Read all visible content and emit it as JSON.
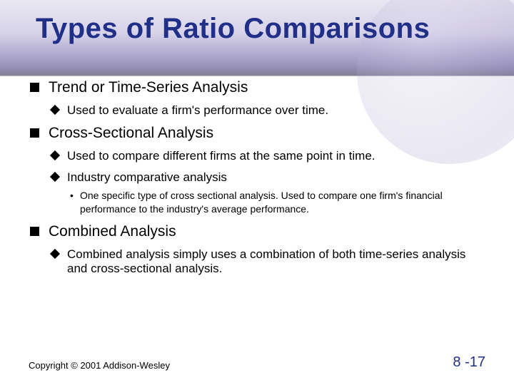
{
  "colors": {
    "title": "#203088",
    "text": "#000000",
    "pagenum": "#203088",
    "background": "#ffffff",
    "band_top": "#d8d4e8",
    "band_mid": "#7a6fb0",
    "band_dark": "#1a1438"
  },
  "typography": {
    "title_fontsize": 40,
    "lvl1_fontsize": 21,
    "lvl2_fontsize": 17,
    "lvl3_fontsize": 14,
    "footer_fontsize": 13,
    "pagenum_fontsize": 20,
    "family": "Arial"
  },
  "title": "Types of Ratio Comparisons",
  "bullets": [
    {
      "text": "Trend or Time-Series Analysis",
      "children": [
        {
          "text": "Used to evaluate a firm's performance over time."
        }
      ]
    },
    {
      "text": "Cross-Sectional Analysis",
      "children": [
        {
          "text": "Used to compare different firms at the same point in time."
        },
        {
          "text": "Industry comparative analysis",
          "children": [
            {
              "text": "One specific type of cross sectional analysis. Used to compare one firm's financial performance to the industry's average performance."
            }
          ]
        }
      ]
    },
    {
      "text": "Combined Analysis",
      "children": [
        {
          "text": "Combined analysis simply uses a combination of both time-series analysis and cross-sectional analysis."
        }
      ]
    }
  ],
  "footer": {
    "copyright": "Copyright © 2001 Addison-Wesley",
    "pagenum": "8 -17"
  }
}
